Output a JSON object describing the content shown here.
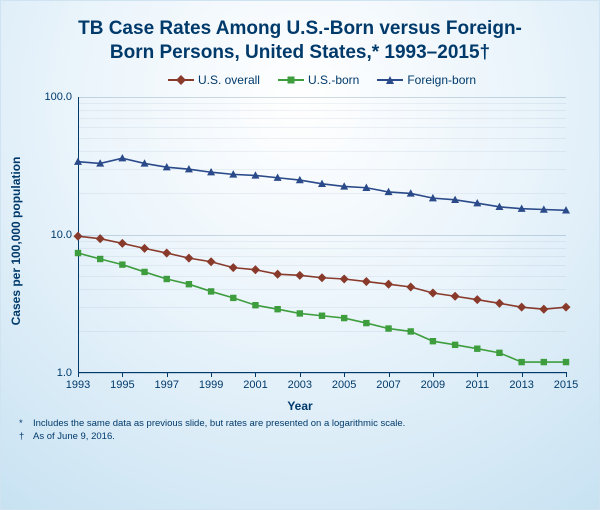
{
  "title_line1": "TB Case Rates Among U.S.-Born versus Foreign-",
  "title_line2": "Born Persons, United States,* 1993–2015†",
  "chart": {
    "type": "line-log",
    "xlabel": "Year",
    "ylabel": "Cases per 100,000 population",
    "yscale": "log",
    "ylim_min": 1.0,
    "ylim_max": 100.0,
    "ytick_labels": [
      "1.0",
      "10.0",
      "100.0"
    ],
    "ytick_values": [
      1.0,
      10.0,
      100.0
    ],
    "xlim_min": 1993,
    "xlim_max": 2015,
    "x_ticks": [
      1993,
      1995,
      1997,
      1999,
      2001,
      2003,
      2005,
      2007,
      2009,
      2011,
      2013,
      2015
    ],
    "years": [
      1993,
      1994,
      1995,
      1996,
      1997,
      1998,
      1999,
      2000,
      2001,
      2002,
      2003,
      2004,
      2005,
      2006,
      2007,
      2008,
      2009,
      2010,
      2011,
      2012,
      2013,
      2014,
      2015
    ],
    "background_gradient_inner": "#ffffff",
    "background_gradient_outer": "#c8e2f2",
    "grid_color": "rgba(0,58,107,0.18)",
    "axis_color": "#003a6b",
    "title_fontsize": 19,
    "label_fontsize": 12,
    "tick_fontsize": 11,
    "series": [
      {
        "name": "U.S. overall",
        "color": "#8a3a2a",
        "marker": "diamond",
        "line_width": 1.6,
        "values": [
          9.8,
          9.4,
          8.7,
          8.0,
          7.4,
          6.8,
          6.4,
          5.8,
          5.6,
          5.2,
          5.1,
          4.9,
          4.8,
          4.6,
          4.4,
          4.2,
          3.8,
          3.6,
          3.4,
          3.2,
          3.0,
          2.9,
          3.0
        ]
      },
      {
        "name": "U.S.-born",
        "color": "#3e9e3e",
        "marker": "square",
        "line_width": 1.6,
        "values": [
          7.4,
          6.7,
          6.1,
          5.4,
          4.8,
          4.4,
          3.9,
          3.5,
          3.1,
          2.9,
          2.7,
          2.6,
          2.5,
          2.3,
          2.1,
          2.0,
          1.7,
          1.6,
          1.5,
          1.4,
          1.2,
          1.2,
          1.2
        ]
      },
      {
        "name": "Foreign-born",
        "color": "#2a4a8a",
        "marker": "triangle",
        "line_width": 1.6,
        "values": [
          34.0,
          33.0,
          36.0,
          33.0,
          31.0,
          30.0,
          28.5,
          27.5,
          27.0,
          26.0,
          25.0,
          23.5,
          22.5,
          22.0,
          20.5,
          20.0,
          18.5,
          18.0,
          17.0,
          16.0,
          15.5,
          15.3,
          15.1
        ]
      }
    ]
  },
  "legend": {
    "items": [
      "U.S. overall",
      "U.S.-born",
      "Foreign-born"
    ]
  },
  "footnotes": [
    {
      "symbol": "*",
      "text": "Includes the same data as previous slide, but rates are presented on a logarithmic scale."
    },
    {
      "symbol": "†",
      "text": "As of June 9, 2016."
    }
  ]
}
